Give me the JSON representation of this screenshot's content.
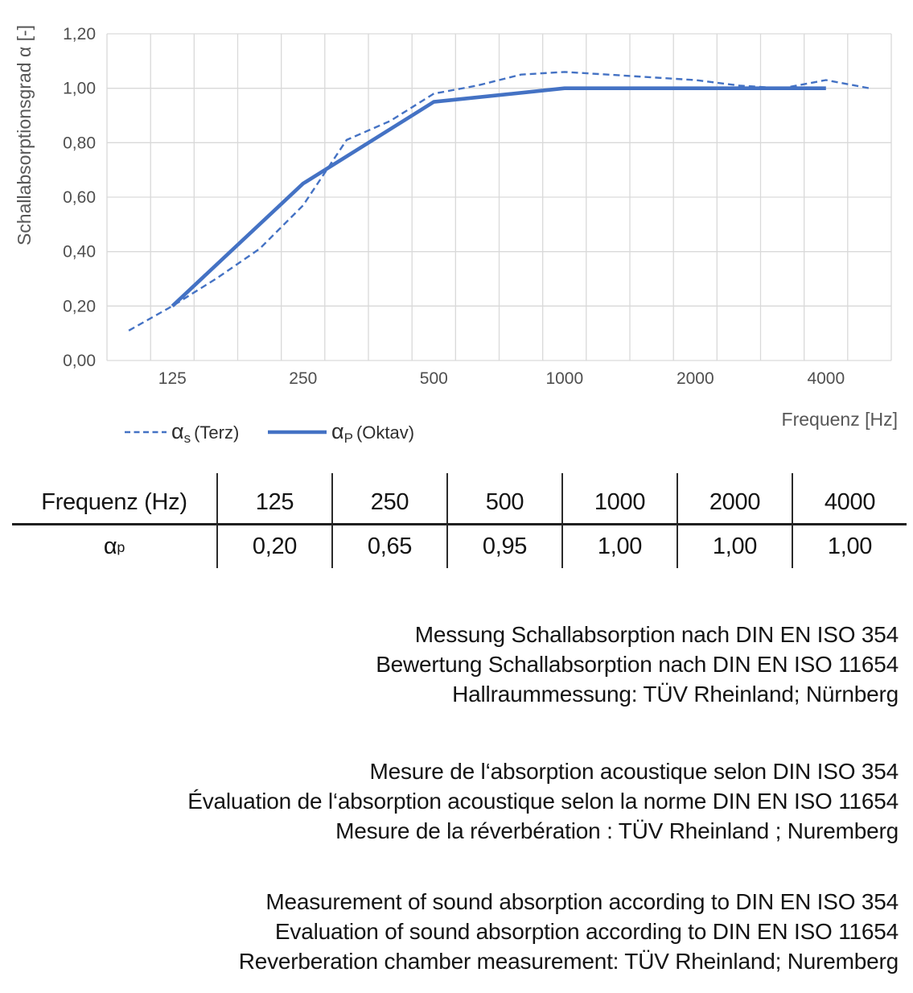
{
  "colors": {
    "accent": "#4472C4",
    "gridline": "#D9D9D9",
    "axis_text": "#4f4f4f",
    "text": "#141414"
  },
  "chart_data": {
    "type": "line",
    "title": "",
    "ylabel": "Schallabsorptionsgrad α [-]",
    "xlabel": "Frequenz [Hz]",
    "x_scale": "logarithmic, third-octave band categories",
    "grid": "both",
    "legend_position": "bottom-left",
    "ylim": [
      0,
      1.2
    ],
    "y_tick_values": [
      0,
      0.2,
      0.4,
      0.6,
      0.8,
      1.0,
      1.2
    ],
    "y_tick_labels": [
      "0,00",
      "0,20",
      "0,40",
      "0,60",
      "0,80",
      "1,00",
      "1,20"
    ],
    "categories": [
      100,
      125,
      160,
      200,
      250,
      315,
      400,
      500,
      630,
      800,
      1000,
      1250,
      1600,
      2000,
      2500,
      3150,
      4000,
      5000
    ],
    "x_tick_labels": [
      "125",
      "250",
      "500",
      "1000",
      "2000",
      "4000"
    ],
    "series": [
      {
        "name": "αs (Terz)",
        "legend": {
          "symbol": "α",
          "sub": "s",
          "rest": "(Terz)"
        },
        "style": "dashed",
        "color": "#4472C4",
        "x": [
          100,
          125,
          160,
          200,
          250,
          315,
          400,
          500,
          630,
          800,
          1000,
          1250,
          1600,
          2000,
          2500,
          3150,
          4000,
          5000
        ],
        "values": [
          0.11,
          0.2,
          0.3,
          0.41,
          0.57,
          0.81,
          0.88,
          0.98,
          1.01,
          1.05,
          1.06,
          1.05,
          1.04,
          1.03,
          1.01,
          1.0,
          1.03,
          1.0
        ]
      },
      {
        "name": "αP (Oktav)",
        "legend": {
          "symbol": "α",
          "sub": "P",
          "rest": "(Oktav)"
        },
        "style": "solid",
        "color": "#4472C4",
        "x": [
          125,
          250,
          500,
          1000,
          2000,
          4000
        ],
        "values": [
          0.2,
          0.65,
          0.95,
          1.0,
          1.0,
          1.0
        ]
      }
    ]
  },
  "table": {
    "header": [
      "Frequenz (Hz)",
      "125",
      "250",
      "500",
      "1000",
      "2000",
      "4000"
    ],
    "row_label": {
      "symbol": "α",
      "sub": "p"
    },
    "values": [
      "0,20",
      "0,65",
      "0,95",
      "1,00",
      "1,00",
      "1,00"
    ]
  },
  "notes": {
    "german": [
      "Messung Schallabsorption nach DIN EN ISO 354",
      "Bewertung Schallabsorption nach DIN EN ISO 11654",
      "Hallraummessung: TÜV Rheinland; Nürnberg"
    ],
    "french": [
      "Mesure de l‘absorption acoustique selon DIN ISO 354",
      "Évaluation de l‘absorption acoustique selon la norme DIN EN ISO 11654",
      "Mesure de la réverbération : TÜV Rheinland ; Nuremberg"
    ],
    "english": [
      "Measurement of sound absorption according to DIN EN ISO 354",
      "Evaluation of sound absorption according to DIN EN ISO 11654",
      "Reverberation chamber measurement: TÜV Rheinland; Nuremberg"
    ]
  }
}
